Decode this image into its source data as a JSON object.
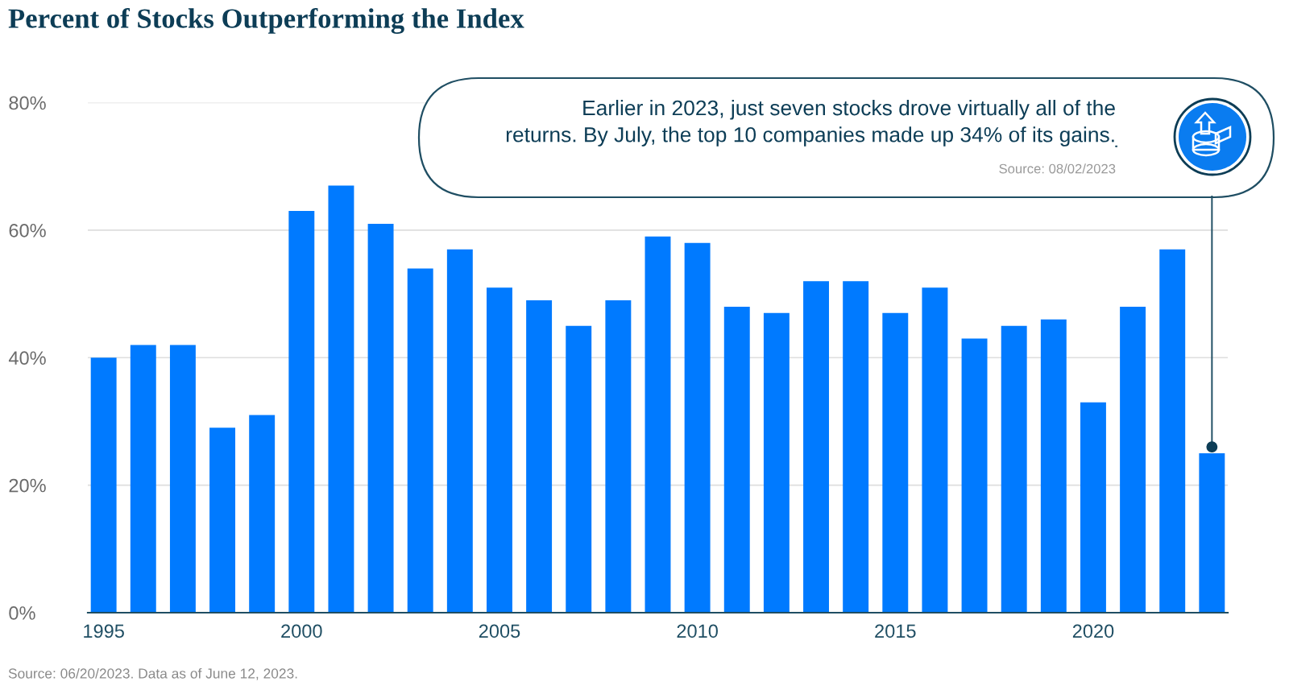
{
  "chart_data": {
    "type": "bar",
    "title": "Percent of Stocks Outperforming the Index",
    "x": [
      1995,
      1996,
      1997,
      1998,
      1999,
      2000,
      2001,
      2002,
      2003,
      2004,
      2005,
      2006,
      2007,
      2008,
      2009,
      2010,
      2011,
      2012,
      2013,
      2014,
      2015,
      2016,
      2017,
      2018,
      2019,
      2020,
      2021,
      2022,
      2023
    ],
    "values": [
      40,
      42,
      42,
      29,
      31,
      63,
      67,
      61,
      54,
      57,
      51,
      49,
      45,
      49,
      59,
      58,
      48,
      47,
      52,
      52,
      47,
      51,
      43,
      45,
      46,
      33,
      48,
      57,
      25
    ],
    "color": "#007aff",
    "xlim": [
      1994.6,
      2023.4
    ],
    "xticks": [
      1995,
      2000,
      2005,
      2010,
      2015,
      2020
    ],
    "ylim": [
      0,
      80
    ],
    "yticks": [
      {
        "value": 0,
        "label": "0%"
      },
      {
        "value": 20,
        "label": "20%"
      },
      {
        "value": 40,
        "label": "40%"
      },
      {
        "value": 60,
        "label": "60%"
      },
      {
        "value": 80,
        "label": "80%"
      }
    ],
    "grid": "y",
    "annotations": [
      {
        "text": "Earlier in 2023, just seven stocks drove virtually all of the\nreturns. By July, the top 10 companies made up 34% of its gains.",
        "x": 2023,
        "y": 26
      },
      "Source: 08/02/2023",
      "Source: 06/20/2023. Data as of June 12, 2023."
    ]
  }
}
